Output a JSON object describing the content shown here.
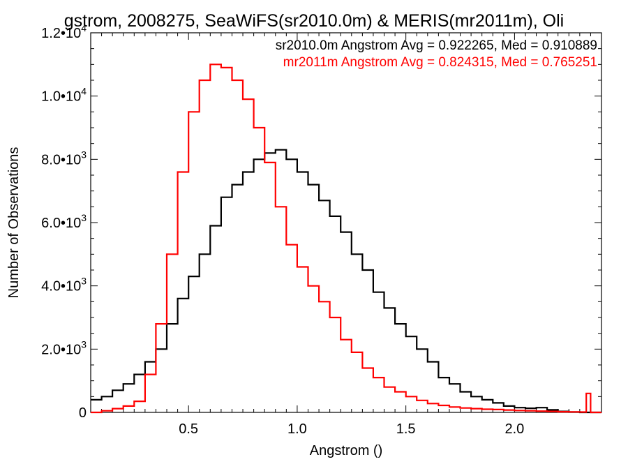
{
  "chart_data": {
    "type": "line",
    "title": "gstrom, 2008275, SeaWiFS(sr2010.0m) & MERIS(mr2011m), Oli",
    "xlabel": "Angstrom ()",
    "ylabel": "Number of Observations",
    "xlim": [
      0.05,
      2.4
    ],
    "ylim": [
      0,
      12000
    ],
    "grid": false,
    "legend": "top-right",
    "x_ticks": [
      {
        "value": 0.5,
        "label": "0.5"
      },
      {
        "value": 1.0,
        "label": "1.0"
      },
      {
        "value": 1.5,
        "label": "1.5"
      },
      {
        "value": 2.0,
        "label": "2.0"
      }
    ],
    "y_ticks": [
      {
        "value": 0,
        "mant": "0",
        "exp": ""
      },
      {
        "value": 2000,
        "mant": "2.0•10",
        "exp": "3"
      },
      {
        "value": 4000,
        "mant": "4.0•10",
        "exp": "3"
      },
      {
        "value": 6000,
        "mant": "6.0•10",
        "exp": "3"
      },
      {
        "value": 8000,
        "mant": "8.0•10",
        "exp": "3"
      },
      {
        "value": 10000,
        "mant": "1.0•10",
        "exp": "4"
      },
      {
        "value": 12000,
        "mant": "1.2•10",
        "exp": "4"
      }
    ],
    "series": [
      {
        "name": "sr2010.0m Angstrom Avg = 0.922265, Med = 0.910889",
        "color": "#000000",
        "x": [
          0.05,
          0.1,
          0.15,
          0.2,
          0.25,
          0.3,
          0.35,
          0.4,
          0.45,
          0.5,
          0.55,
          0.6,
          0.65,
          0.7,
          0.75,
          0.8,
          0.85,
          0.9,
          0.95,
          1.0,
          1.05,
          1.1,
          1.15,
          1.2,
          1.25,
          1.3,
          1.35,
          1.4,
          1.45,
          1.5,
          1.55,
          1.6,
          1.65,
          1.7,
          1.75,
          1.8,
          1.85,
          1.9,
          1.95,
          2.0,
          2.05,
          2.1,
          2.15,
          2.2,
          2.25,
          2.3,
          2.35,
          2.4
        ],
        "y": [
          400,
          500,
          700,
          900,
          1200,
          1600,
          2000,
          2800,
          3600,
          4300,
          5000,
          5900,
          6800,
          7200,
          7600,
          8000,
          8200,
          8300,
          8000,
          7600,
          7200,
          6700,
          6200,
          5700,
          5000,
          4500,
          3800,
          3300,
          2800,
          2400,
          2000,
          1600,
          1100,
          900,
          650,
          500,
          400,
          300,
          200,
          150,
          130,
          150,
          80,
          30,
          10,
          0,
          0,
          0
        ]
      },
      {
        "name": "mr2011m Angstrom Avg = 0.824315, Med = 0.765251",
        "color": "#ff0000",
        "x": [
          0.05,
          0.1,
          0.15,
          0.2,
          0.25,
          0.3,
          0.35,
          0.4,
          0.45,
          0.5,
          0.55,
          0.6,
          0.65,
          0.7,
          0.75,
          0.8,
          0.85,
          0.9,
          0.95,
          1.0,
          1.05,
          1.1,
          1.15,
          1.2,
          1.25,
          1.3,
          1.35,
          1.4,
          1.45,
          1.5,
          1.55,
          1.6,
          1.65,
          1.7,
          1.75,
          1.8,
          1.85,
          1.9,
          1.95,
          2.0,
          2.05,
          2.1,
          2.15,
          2.2,
          2.25,
          2.3,
          2.33,
          2.35,
          2.4
        ],
        "y": [
          0,
          50,
          120,
          200,
          350,
          1200,
          2800,
          5000,
          7600,
          9500,
          10500,
          11000,
          10900,
          10500,
          9900,
          9000,
          7900,
          6500,
          5300,
          4600,
          4000,
          3500,
          3000,
          2300,
          1900,
          1400,
          1100,
          800,
          650,
          500,
          380,
          280,
          220,
          170,
          140,
          120,
          100,
          90,
          75,
          60,
          50,
          40,
          30,
          20,
          15,
          10,
          600,
          0,
          0
        ]
      }
    ]
  }
}
